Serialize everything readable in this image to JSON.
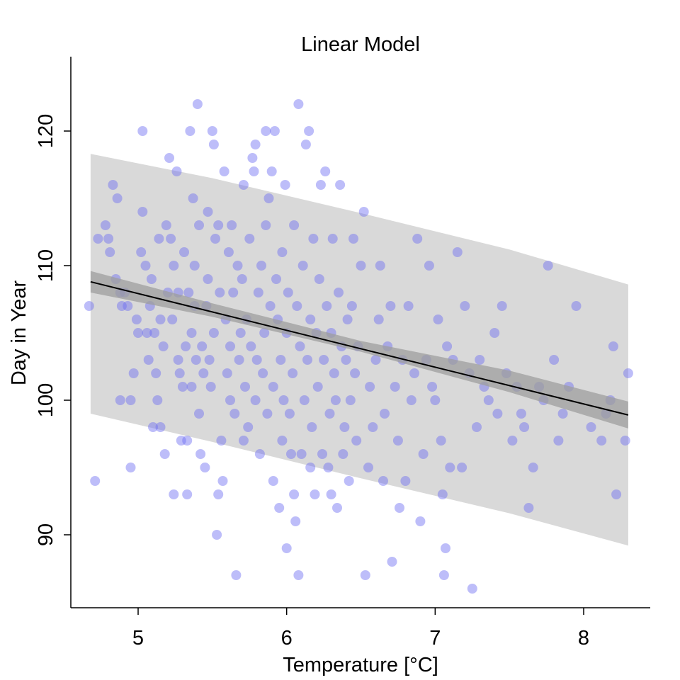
{
  "chart_data": {
    "type": "scatter",
    "title": "Linear Model",
    "xlabel": "Temperature [°C]",
    "ylabel": "Day in Year",
    "xlim": [
      4.55,
      8.45
    ],
    "ylim": [
      84.5,
      125.5
    ],
    "x_ticks": [
      5,
      6,
      7,
      8
    ],
    "y_ticks": [
      90,
      100,
      110,
      120
    ],
    "x_tick_labels": [
      "5",
      "6",
      "7",
      "8"
    ],
    "y_tick_labels": [
      "90",
      "100",
      "110",
      "120"
    ],
    "grid": false,
    "legend": "none",
    "colors": {
      "points": "#6d6df2",
      "fit_line": "#000000",
      "confidence_band": "#9e9e9e",
      "prediction_band": "#d9d9d9"
    },
    "fit_line": {
      "x": [
        4.68,
        8.3
      ],
      "y": [
        108.8,
        98.9
      ]
    },
    "confidence_band": {
      "x": [
        4.68,
        5.5,
        6.5,
        7.5,
        8.3
      ],
      "lower": [
        108.0,
        106.2,
        103.6,
        100.6,
        97.9
      ],
      "upper": [
        109.6,
        107.2,
        104.4,
        102.2,
        99.9
      ]
    },
    "prediction_band": {
      "x": [
        4.68,
        5.5,
        6.5,
        7.5,
        8.3
      ],
      "lower": [
        99.0,
        96.9,
        94.2,
        91.6,
        89.2
      ],
      "upper": [
        118.3,
        116.5,
        113.9,
        111.2,
        108.6
      ]
    },
    "points": [
      [
        4.67,
        107
      ],
      [
        4.71,
        94
      ],
      [
        4.73,
        112
      ],
      [
        4.78,
        113
      ],
      [
        4.8,
        112
      ],
      [
        4.81,
        111
      ],
      [
        4.83,
        116
      ],
      [
        4.85,
        109
      ],
      [
        4.86,
        115
      ],
      [
        4.88,
        108
      ],
      [
        4.88,
        100
      ],
      [
        4.89,
        107
      ],
      [
        4.91,
        108
      ],
      [
        4.93,
        107
      ],
      [
        4.95,
        100
      ],
      [
        4.95,
        95
      ],
      [
        4.97,
        102
      ],
      [
        4.99,
        106
      ],
      [
        5.0,
        105
      ],
      [
        5.02,
        111
      ],
      [
        5.03,
        120
      ],
      [
        5.03,
        114
      ],
      [
        5.05,
        110
      ],
      [
        5.06,
        105
      ],
      [
        5.07,
        103
      ],
      [
        5.08,
        107
      ],
      [
        5.09,
        109
      ],
      [
        5.1,
        98
      ],
      [
        5.11,
        105
      ],
      [
        5.12,
        102
      ],
      [
        5.13,
        100
      ],
      [
        5.14,
        112
      ],
      [
        5.15,
        98
      ],
      [
        5.15,
        106
      ],
      [
        5.17,
        104
      ],
      [
        5.18,
        96
      ],
      [
        5.19,
        113
      ],
      [
        5.2,
        108
      ],
      [
        5.21,
        118
      ],
      [
        5.22,
        112
      ],
      [
        5.23,
        106
      ],
      [
        5.24,
        110
      ],
      [
        5.24,
        93
      ],
      [
        5.26,
        117
      ],
      [
        5.27,
        103
      ],
      [
        5.27,
        108
      ],
      [
        5.28,
        102
      ],
      [
        5.29,
        97
      ],
      [
        5.3,
        101
      ],
      [
        5.31,
        111
      ],
      [
        5.32,
        104
      ],
      [
        5.33,
        97
      ],
      [
        5.33,
        93
      ],
      [
        5.34,
        108
      ],
      [
        5.35,
        120
      ],
      [
        5.36,
        101
      ],
      [
        5.36,
        105
      ],
      [
        5.37,
        115
      ],
      [
        5.38,
        107
      ],
      [
        5.38,
        110
      ],
      [
        5.39,
        103
      ],
      [
        5.4,
        122
      ],
      [
        5.41,
        113
      ],
      [
        5.41,
        99
      ],
      [
        5.42,
        96
      ],
      [
        5.43,
        104
      ],
      [
        5.44,
        102
      ],
      [
        5.45,
        95
      ],
      [
        5.46,
        107
      ],
      [
        5.47,
        109
      ],
      [
        5.47,
        114
      ],
      [
        5.48,
        103
      ],
      [
        5.49,
        101
      ],
      [
        5.5,
        120
      ],
      [
        5.51,
        119
      ],
      [
        5.51,
        105
      ],
      [
        5.52,
        112
      ],
      [
        5.53,
        90
      ],
      [
        5.54,
        113
      ],
      [
        5.54,
        93
      ],
      [
        5.55,
        108
      ],
      [
        5.56,
        97
      ],
      [
        5.57,
        94
      ],
      [
        5.58,
        117
      ],
      [
        5.59,
        106
      ],
      [
        5.6,
        102
      ],
      [
        5.61,
        111
      ],
      [
        5.62,
        100
      ],
      [
        5.62,
        104
      ],
      [
        5.63,
        113
      ],
      [
        5.64,
        108
      ],
      [
        5.65,
        99
      ],
      [
        5.66,
        87
      ],
      [
        5.67,
        110
      ],
      [
        5.68,
        103
      ],
      [
        5.69,
        105
      ],
      [
        5.7,
        109
      ],
      [
        5.71,
        97
      ],
      [
        5.71,
        116
      ],
      [
        5.72,
        101
      ],
      [
        5.73,
        106
      ],
      [
        5.74,
        98
      ],
      [
        5.75,
        112
      ],
      [
        5.76,
        104
      ],
      [
        5.77,
        118
      ],
      [
        5.78,
        117
      ],
      [
        5.79,
        119
      ],
      [
        5.79,
        100
      ],
      [
        5.8,
        103
      ],
      [
        5.81,
        108
      ],
      [
        5.82,
        96
      ],
      [
        5.83,
        110
      ],
      [
        5.84,
        102
      ],
      [
        5.85,
        105
      ],
      [
        5.86,
        120
      ],
      [
        5.86,
        113
      ],
      [
        5.87,
        99
      ],
      [
        5.88,
        115
      ],
      [
        5.89,
        107
      ],
      [
        5.9,
        117
      ],
      [
        5.91,
        94
      ],
      [
        5.91,
        101
      ],
      [
        5.92,
        120
      ],
      [
        5.93,
        109
      ],
      [
        5.94,
        106
      ],
      [
        5.95,
        92
      ],
      [
        5.96,
        103
      ],
      [
        5.97,
        97
      ],
      [
        5.97,
        111
      ],
      [
        5.98,
        100
      ],
      [
        5.99,
        116
      ],
      [
        6.0,
        89
      ],
      [
        6.0,
        105
      ],
      [
        6.01,
        108
      ],
      [
        6.02,
        99
      ],
      [
        6.03,
        96
      ],
      [
        6.04,
        102
      ],
      [
        6.05,
        113
      ],
      [
        6.05,
        93
      ],
      [
        6.06,
        91
      ],
      [
        6.07,
        107
      ],
      [
        6.08,
        87
      ],
      [
        6.08,
        122
      ],
      [
        6.09,
        104
      ],
      [
        6.1,
        96
      ],
      [
        6.11,
        110
      ],
      [
        6.12,
        100
      ],
      [
        6.13,
        119
      ],
      [
        6.14,
        103
      ],
      [
        6.15,
        120
      ],
      [
        6.16,
        106
      ],
      [
        6.16,
        95
      ],
      [
        6.17,
        98
      ],
      [
        6.18,
        112
      ],
      [
        6.19,
        93
      ],
      [
        6.2,
        105
      ],
      [
        6.21,
        101
      ],
      [
        6.22,
        109
      ],
      [
        6.23,
        116
      ],
      [
        6.24,
        96
      ],
      [
        6.25,
        103
      ],
      [
        6.26,
        117
      ],
      [
        6.27,
        107
      ],
      [
        6.28,
        95
      ],
      [
        6.29,
        99
      ],
      [
        6.3,
        93
      ],
      [
        6.3,
        105
      ],
      [
        6.31,
        112
      ],
      [
        6.32,
        102
      ],
      [
        6.33,
        100
      ],
      [
        6.34,
        92
      ],
      [
        6.35,
        108
      ],
      [
        6.36,
        116
      ],
      [
        6.37,
        104
      ],
      [
        6.38,
        96
      ],
      [
        6.39,
        98
      ],
      [
        6.4,
        103
      ],
      [
        6.41,
        106
      ],
      [
        6.42,
        94
      ],
      [
        6.43,
        100
      ],
      [
        6.44,
        107
      ],
      [
        6.45,
        112
      ],
      [
        6.46,
        102
      ],
      [
        6.47,
        97
      ],
      [
        6.48,
        104
      ],
      [
        6.5,
        110
      ],
      [
        6.52,
        114
      ],
      [
        6.53,
        87
      ],
      [
        6.55,
        95
      ],
      [
        6.56,
        101
      ],
      [
        6.58,
        98
      ],
      [
        6.6,
        103
      ],
      [
        6.62,
        106
      ],
      [
        6.63,
        110
      ],
      [
        6.65,
        94
      ],
      [
        6.66,
        99
      ],
      [
        6.68,
        104
      ],
      [
        6.7,
        107
      ],
      [
        6.71,
        88
      ],
      [
        6.73,
        101
      ],
      [
        6.75,
        97
      ],
      [
        6.76,
        92
      ],
      [
        6.78,
        103
      ],
      [
        6.8,
        94
      ],
      [
        6.82,
        107
      ],
      [
        6.84,
        100
      ],
      [
        6.86,
        102
      ],
      [
        6.88,
        112
      ],
      [
        6.9,
        91
      ],
      [
        6.92,
        96
      ],
      [
        6.94,
        103
      ],
      [
        6.96,
        110
      ],
      [
        6.98,
        101
      ],
      [
        7.0,
        100
      ],
      [
        7.02,
        106
      ],
      [
        7.04,
        97
      ],
      [
        7.05,
        93
      ],
      [
        7.06,
        87
      ],
      [
        7.07,
        89
      ],
      [
        7.08,
        104
      ],
      [
        7.1,
        95
      ],
      [
        7.12,
        103
      ],
      [
        7.15,
        111
      ],
      [
        7.18,
        95
      ],
      [
        7.2,
        107
      ],
      [
        7.23,
        102
      ],
      [
        7.25,
        86
      ],
      [
        7.28,
        98
      ],
      [
        7.3,
        103
      ],
      [
        7.33,
        101
      ],
      [
        7.36,
        100
      ],
      [
        7.4,
        105
      ],
      [
        7.42,
        99
      ],
      [
        7.45,
        107
      ],
      [
        7.48,
        102
      ],
      [
        7.52,
        97
      ],
      [
        7.55,
        101
      ],
      [
        7.58,
        99
      ],
      [
        7.6,
        98
      ],
      [
        7.63,
        92
      ],
      [
        7.66,
        95
      ],
      [
        7.7,
        101
      ],
      [
        7.73,
        100
      ],
      [
        7.76,
        110
      ],
      [
        7.8,
        103
      ],
      [
        7.83,
        97
      ],
      [
        7.86,
        99
      ],
      [
        7.9,
        101
      ],
      [
        7.95,
        107
      ],
      [
        8.05,
        98
      ],
      [
        8.12,
        97
      ],
      [
        8.15,
        99
      ],
      [
        8.18,
        100
      ],
      [
        8.2,
        104
      ],
      [
        8.22,
        93
      ],
      [
        8.28,
        97
      ],
      [
        8.3,
        102
      ]
    ]
  }
}
